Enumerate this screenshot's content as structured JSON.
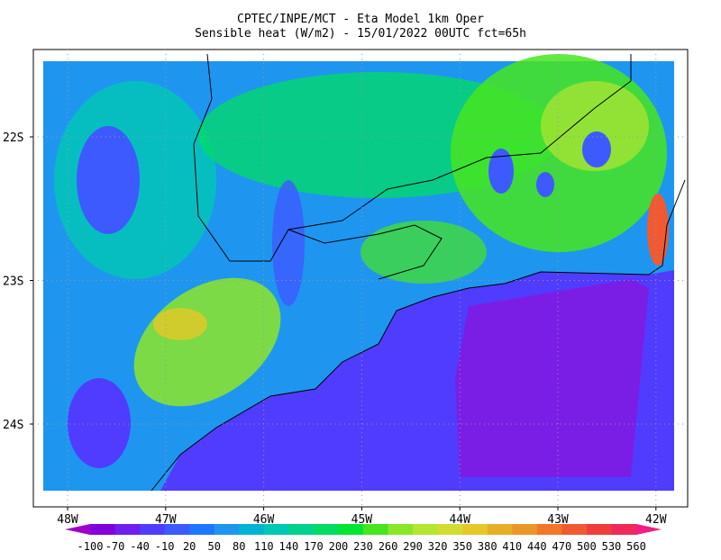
{
  "title": "CPTEC/INPE/MCT -  Eta Model 1km Oper",
  "subtitle": "Sensible heat (W/m2) - 15/01/2022 00UTC fct=65h",
  "lat_labels": [
    "22S",
    "23S",
    "24S"
  ],
  "lon_labels": [
    "48W",
    "47W",
    "46W",
    "45W",
    "44W",
    "43W",
    "42W"
  ],
  "colorbar": {
    "ticks": [
      -100,
      -70,
      -40,
      -10,
      20,
      50,
      80,
      110,
      140,
      170,
      200,
      230,
      260,
      290,
      320,
      350,
      380,
      410,
      440,
      470,
      500,
      530,
      560
    ],
    "colors": [
      "#a000c8",
      "#8200dc",
      "#6e1ef0",
      "#503cff",
      "#3c5aff",
      "#1e78ff",
      "#1e96f0",
      "#00b4d2",
      "#00c8b4",
      "#00d28c",
      "#00dc64",
      "#00e632",
      "#46e61e",
      "#8ce628",
      "#b4e632",
      "#d2dc32",
      "#e6c828",
      "#e6af28",
      "#eb9628",
      "#f07828",
      "#f05a32",
      "#f03c3c",
      "#f0285a",
      "#f01e82"
    ]
  }
}
